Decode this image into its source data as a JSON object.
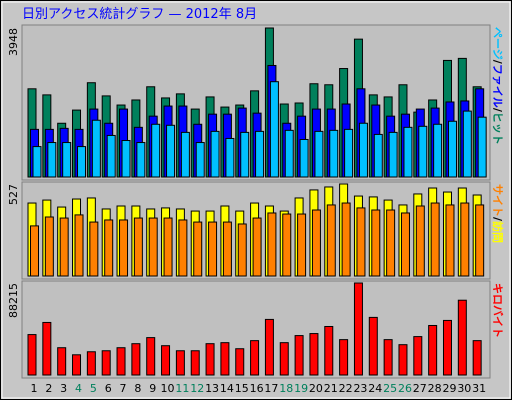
{
  "title": "日別アクセス統計グラフ —  2012年 8月",
  "legend_separator": "/",
  "chart_data": [
    {
      "type": "bar",
      "ylim": [
        0,
        3948
      ],
      "yticks": [
        3948
      ],
      "series": [
        {
          "name": "ヒット",
          "color": "#00805c",
          "values": [
            2337,
            2176,
            1424,
            1773,
            2498,
            2149,
            1907,
            2041,
            2391,
            2095,
            2203,
            1800,
            2122,
            1853,
            1907,
            2283,
            3948,
            1934,
            1961,
            2471,
            2444,
            2874,
            3653,
            2176,
            2122,
            2444,
            1719,
            2041,
            3089,
            3143,
            2391
          ]
        },
        {
          "name": "ファイル",
          "color": "#0000ff",
          "values": [
            1262,
            1262,
            1289,
            1262,
            1800,
            1424,
            1800,
            1316,
            1612,
            1880,
            1880,
            1397,
            1665,
            1665,
            1826,
            1692,
            2955,
            1424,
            1612,
            1800,
            1800,
            1934,
            2337,
            1907,
            1612,
            1665,
            1800,
            1826,
            1988,
            2015,
            2337
          ]
        },
        {
          "name": "ページ",
          "color": "#00c0ff",
          "values": [
            806,
            913,
            913,
            806,
            1504,
            1101,
            967,
            913,
            1397,
            1370,
            1182,
            913,
            1209,
            1021,
            1182,
            1209,
            2525,
            1236,
            994,
            1209,
            1236,
            1262,
            1424,
            1128,
            1182,
            1316,
            1343,
            1397,
            1477,
            1746,
            1585
          ]
        }
      ]
    },
    {
      "type": "bar",
      "ylim": [
        0,
        527
      ],
      "yticks": [
        527
      ],
      "series": [
        {
          "name": "訪問",
          "color": "#ffff00",
          "values": [
            418,
            435,
            395,
            441,
            447,
            384,
            401,
            401,
            384,
            390,
            384,
            372,
            372,
            401,
            372,
            418,
            401,
            372,
            447,
            493,
            510,
            527,
            458,
            453,
            435,
            407,
            470,
            504,
            481,
            504,
            464
          ]
        },
        {
          "name": "サイト",
          "color": "#ff8000",
          "values": [
            287,
            338,
            332,
            350,
            309,
            321,
            321,
            332,
            332,
            332,
            321,
            309,
            309,
            309,
            298,
            332,
            361,
            355,
            355,
            378,
            407,
            418,
            390,
            378,
            378,
            361,
            401,
            418,
            407,
            418,
            407
          ]
        }
      ]
    },
    {
      "type": "bar",
      "ylim": [
        0,
        88215
      ],
      "yticks": [
        88215
      ],
      "categories": [
        "1",
        "2",
        "3",
        "4",
        "5",
        "6",
        "7",
        "8",
        "9",
        "10",
        "11",
        "12",
        "13",
        "14",
        "15",
        "16",
        "17",
        "18",
        "19",
        "20",
        "21",
        "22",
        "23",
        "24",
        "25",
        "26",
        "27",
        "28",
        "29",
        "30",
        "31"
      ],
      "category_colors": [
        "#000000",
        "#000000",
        "#000000",
        "#00805c",
        "#00805c",
        "#000000",
        "#000000",
        "#000000",
        "#000000",
        "#000000",
        "#00805c",
        "#00805c",
        "#000000",
        "#000000",
        "#000000",
        "#000000",
        "#000000",
        "#00805c",
        "#00805c",
        "#000000",
        "#000000",
        "#000000",
        "#000000",
        "#000000",
        "#00805c",
        "#00805c",
        "#000000",
        "#000000",
        "#000000",
        "#000000",
        "#000000"
      ],
      "series": [
        {
          "name": "キロバイト",
          "color": "#ff0000",
          "values": [
            38760,
            50388,
            26163,
            19380,
            22287,
            23256,
            26163,
            30039,
            35853,
            28101,
            23256,
            23256,
            30039,
            31008,
            25194,
            32946,
            53295,
            31008,
            37791,
            39729,
            46512,
            33915,
            88215,
            55233,
            33915,
            29070,
            36822,
            47481,
            52326,
            71706,
            32946
          ]
        }
      ]
    }
  ]
}
